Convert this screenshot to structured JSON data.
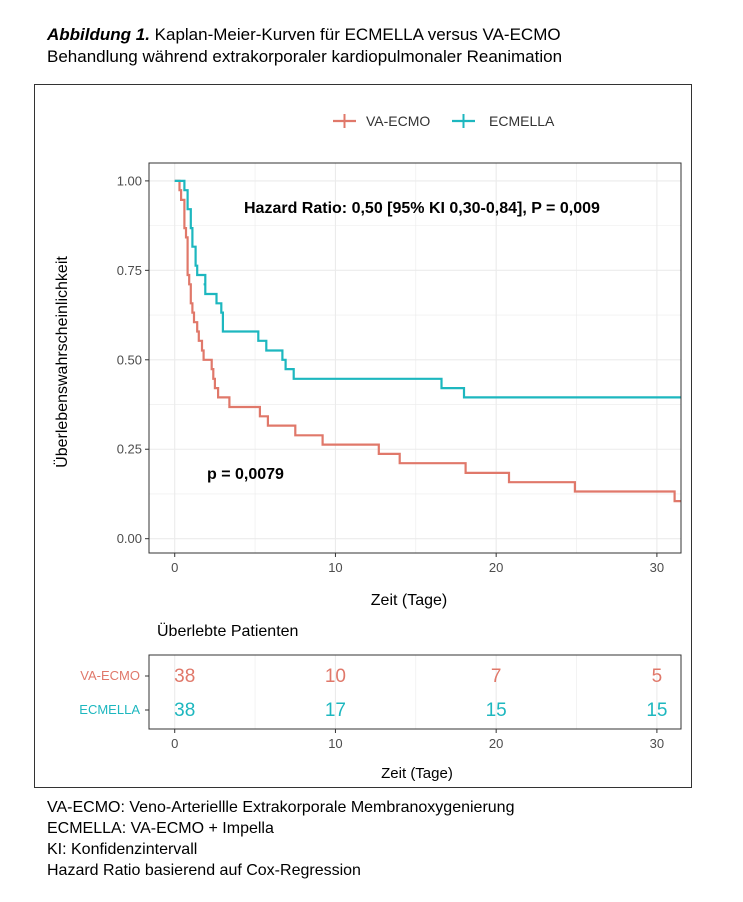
{
  "caption": {
    "lead": "Abbildung 1.",
    "line1_rest": " Kaplan-Meier-Kurven für ECMELLA versus VA-ECMO",
    "line2": "Behandlung während extrakorporaler kardiopulmonaler Reanimation"
  },
  "colors": {
    "va_ecmo": "#E0786A",
    "ecmella": "#1DB7BF",
    "grid": "#EBEBEB",
    "axis_text": "#4D4D4D"
  },
  "chart_data": [
    {
      "type": "line",
      "subtype": "kaplan-meier step",
      "xlabel": "Zeit (Tage)",
      "ylabel": "Überlebenswahrscheinlichkeit",
      "xlim": [
        -1.6,
        31.5
      ],
      "ylim": [
        -0.04,
        1.05
      ],
      "x_ticks": [
        0,
        10,
        20,
        30
      ],
      "y_ticks": [
        0.0,
        0.25,
        0.5,
        0.75,
        1.0
      ],
      "y_tick_labels": [
        "0.00",
        "0.25",
        "0.50",
        "0.75",
        "1.00"
      ],
      "grid": true,
      "legend": {
        "position": "top",
        "entries": [
          "VA-ECMO",
          "ECMELLA"
        ]
      },
      "annotations": [
        {
          "text": "Hazard Ratio: 0,50 [95% KI 0,30-0,84], P = 0,009",
          "x": 12,
          "y": 0.92
        },
        {
          "text": "p = 0,0079",
          "x": 3,
          "y": 0.18
        }
      ],
      "series": [
        {
          "name": "VA-ECMO",
          "color": "#E0786A",
          "points": [
            [
              0,
              1.0
            ],
            [
              0.3,
              0.974
            ],
            [
              0.4,
              0.947
            ],
            [
              0.6,
              0.868
            ],
            [
              0.7,
              0.842
            ],
            [
              0.8,
              0.737
            ],
            [
              0.9,
              0.711
            ],
            [
              1.0,
              0.658
            ],
            [
              1.1,
              0.632
            ],
            [
              1.2,
              0.605
            ],
            [
              1.4,
              0.579
            ],
            [
              1.5,
              0.553
            ],
            [
              1.7,
              0.526
            ],
            [
              1.8,
              0.5
            ],
            [
              2.3,
              0.474
            ],
            [
              2.4,
              0.447
            ],
            [
              2.5,
              0.421
            ],
            [
              2.7,
              0.395
            ],
            [
              3.4,
              0.368
            ],
            [
              5.3,
              0.342
            ],
            [
              5.8,
              0.316
            ],
            [
              7.5,
              0.289
            ],
            [
              9.2,
              0.263
            ],
            [
              12.7,
              0.237
            ],
            [
              14.0,
              0.211
            ],
            [
              18.1,
              0.184
            ],
            [
              20.8,
              0.158
            ],
            [
              24.9,
              0.132
            ],
            [
              31.1,
              0.105
            ],
            [
              31.5,
              0.105
            ]
          ]
        },
        {
          "name": "ECMELLA",
          "color": "#1DB7BF",
          "points": [
            [
              0,
              1.0
            ],
            [
              0.6,
              0.974
            ],
            [
              0.8,
              0.921
            ],
            [
              1.0,
              0.868
            ],
            [
              1.1,
              0.816
            ],
            [
              1.3,
              0.763
            ],
            [
              1.4,
              0.737
            ],
            [
              1.9,
              0.711
            ],
            [
              1.8,
              0.711
            ],
            [
              1.9,
              0.684
            ],
            [
              2.6,
              0.658
            ],
            [
              2.9,
              0.632
            ],
            [
              3.0,
              0.579
            ],
            [
              5.2,
              0.553
            ],
            [
              5.7,
              0.526
            ],
            [
              6.7,
              0.5
            ],
            [
              6.9,
              0.474
            ],
            [
              7.4,
              0.447
            ],
            [
              16.6,
              0.421
            ],
            [
              18.0,
              0.395
            ],
            [
              31.5,
              0.395
            ]
          ]
        }
      ]
    },
    {
      "type": "table",
      "title": "Überlebte Patienten",
      "xlabel": "Zeit (Tage)",
      "x_ticks": [
        0,
        10,
        20,
        30
      ],
      "rows": [
        {
          "name": "VA-ECMO",
          "values": [
            38,
            10,
            7,
            5
          ]
        },
        {
          "name": "ECMELLA",
          "values": [
            38,
            17,
            15,
            15
          ]
        }
      ]
    }
  ],
  "footnotes": [
    "VA-ECMO: Veno-Arteriellle Extrakorporale Membranoxygenierung",
    "ECMELLA: VA-ECMO + Impella",
    "KI: Konfidenzintervall",
    "Hazard Ratio basierend auf Cox-Regression"
  ]
}
